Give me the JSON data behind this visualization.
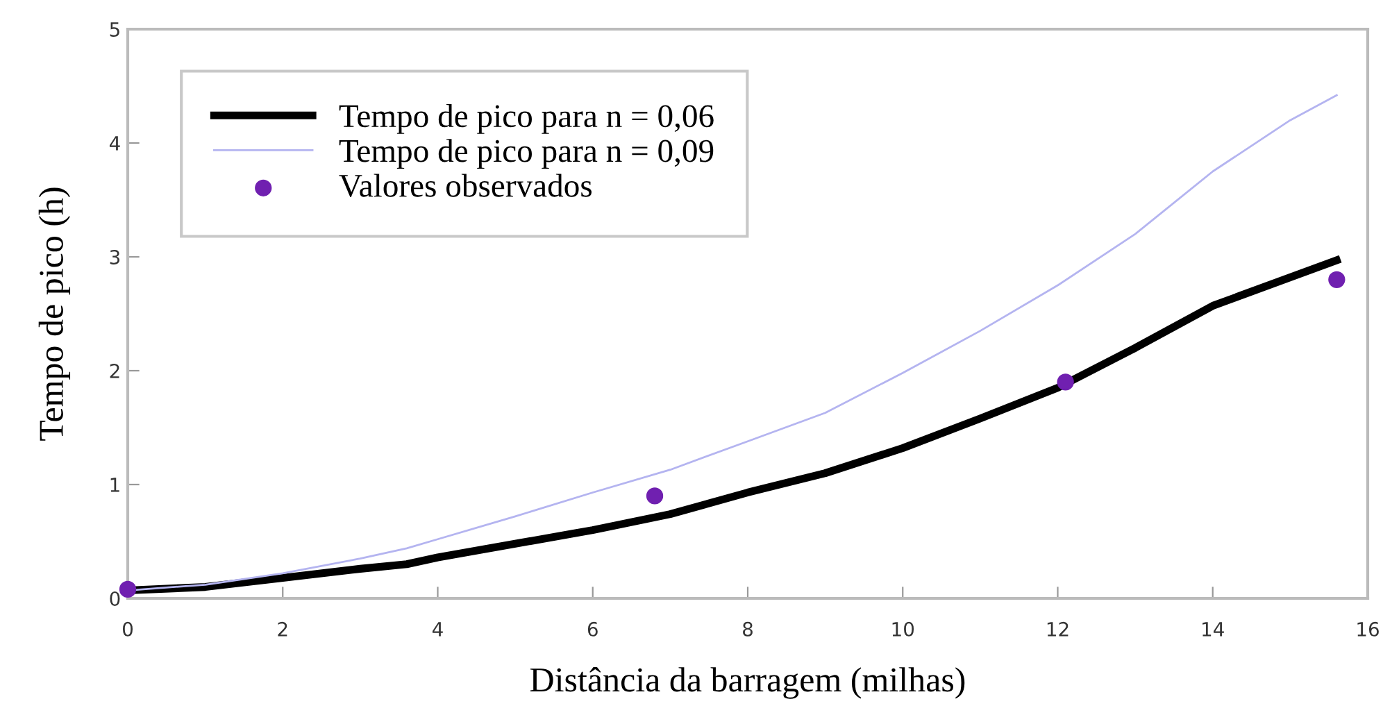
{
  "chart_data": {
    "type": "line",
    "xlabel": "Distância da barragem (milhas)",
    "ylabel": "Tempo de pico (h)",
    "xlim": [
      0,
      16
    ],
    "xticks": [
      0,
      2,
      4,
      6,
      8,
      10,
      12,
      14,
      16
    ],
    "ylim": [
      0,
      5
    ],
    "yticks": [
      0,
      1,
      2,
      3,
      4,
      5
    ],
    "grid": false,
    "legend": "top left",
    "series": [
      {
        "name": "Tempo de pico para n = 0,06",
        "color": "#000000",
        "x": [
          0,
          1,
          2,
          3,
          3.6,
          4,
          5,
          6,
          7,
          8,
          9,
          10,
          11,
          12,
          13,
          14,
          15,
          15.6
        ],
        "values": [
          0.07,
          0.1,
          0.18,
          0.26,
          0.3,
          0.36,
          0.48,
          0.6,
          0.74,
          0.93,
          1.1,
          1.32,
          1.58,
          1.85,
          2.2,
          2.57,
          2.82,
          2.97
        ]
      },
      {
        "name": "Tempo de pico para n = 0,09",
        "color": "#b4b4f0",
        "x": [
          0,
          1,
          2,
          3,
          3.6,
          4,
          5,
          6,
          7,
          8,
          9,
          10,
          11,
          12,
          13,
          14,
          15,
          15.6
        ],
        "values": [
          0.07,
          0.12,
          0.22,
          0.35,
          0.44,
          0.52,
          0.72,
          0.93,
          1.13,
          1.38,
          1.63,
          1.98,
          2.35,
          2.75,
          3.2,
          3.75,
          4.2,
          4.42
        ]
      },
      {
        "name": "Valores observados",
        "color": "#7020b0",
        "type": "scatter",
        "marker": "circle",
        "x": [
          0,
          6.8,
          12.1,
          15.6
        ],
        "values": [
          0.08,
          0.9,
          1.9,
          2.8
        ]
      }
    ]
  }
}
